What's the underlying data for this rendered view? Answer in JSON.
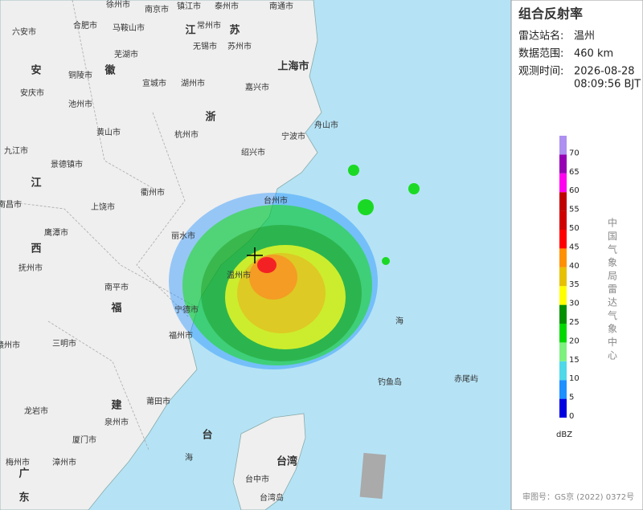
{
  "panel": {
    "title": "组合反射率",
    "station_label": "雷达站名:",
    "station": "温州",
    "range_label": "数据范围:",
    "range": "460 km",
    "time_label": "观测时间:",
    "date": "2026-08-28",
    "time": "08:09:56 BJT",
    "agency": "中国气象局雷达气象中心",
    "footer": "审图号：GS京 (2022) 0372号"
  },
  "legend": {
    "unit": "dBZ",
    "ticks": [
      0,
      5,
      10,
      15,
      20,
      25,
      30,
      35,
      40,
      45,
      50,
      55,
      60,
      65,
      70
    ],
    "colors": [
      "#0000e0",
      "#1e90ff",
      "#4fd8e8",
      "#7ef07e",
      "#00d800",
      "#009000",
      "#ffff00",
      "#e7c000",
      "#ff9000",
      "#ff0000",
      "#d00000",
      "#c00000",
      "#ff00f0",
      "#9600b4",
      "#ad90f0"
    ]
  },
  "map": {
    "labels": [
      "徐州市",
      "南京市",
      "镇江市",
      "泰州市",
      "南通市",
      "六安市",
      "合肥市",
      "马鞍山市",
      "江",
      "常州市",
      "苏",
      "苏州市",
      "芜湖市",
      "无锡市",
      "上海市",
      "安",
      "徽",
      "铜陵市",
      "宣城市",
      "湖州市",
      "嘉兴市",
      "安庆市",
      "池州市",
      "浙",
      "九江市",
      "黄山市",
      "杭州市",
      "宁波市",
      "舟山市",
      "绍兴市",
      "景德镇市",
      "江",
      "衢州市",
      "南昌市",
      "上饶市",
      "台州市",
      "鹰潭市",
      "丽水市",
      "西",
      "抚州市",
      "温州市",
      "南平市",
      "福",
      "宁德市",
      "三明市",
      "福州市",
      "海",
      "赣州市",
      "钓鱼岛",
      "赤尾屿",
      "莆田市",
      "建",
      "龙岩市",
      "泉州市",
      "台",
      "厦门市",
      "海",
      "台湾",
      "梅州市",
      "漳州市",
      "广",
      "台中市",
      "东",
      "台湾岛"
    ]
  }
}
